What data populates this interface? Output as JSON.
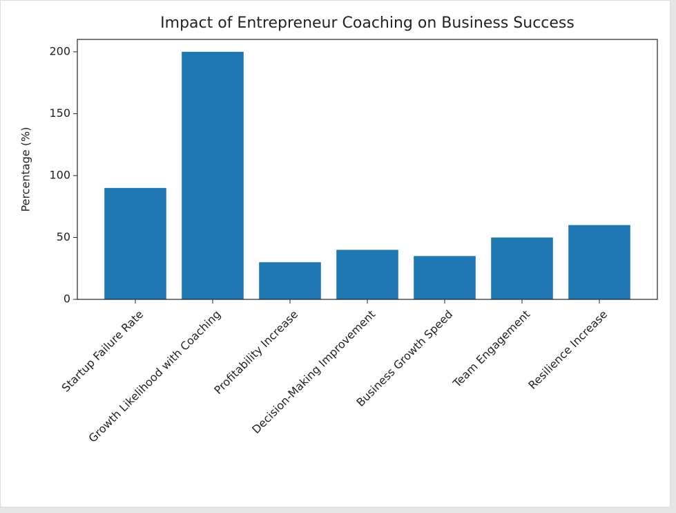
{
  "chart_data": {
    "type": "bar",
    "title": "Impact of Entrepreneur Coaching on Business Success",
    "ylabel": "Percentage (%)",
    "categories": [
      "Startup Failure Rate",
      "Growth Likelihood with Coaching",
      "Profitability Increase",
      "Decision-Making Improvement",
      "Business Growth Speed",
      "Team Engagement",
      "Resilience Increase"
    ],
    "values": [
      90,
      200,
      30,
      40,
      35,
      50,
      60
    ],
    "color": "#1f77b4",
    "ylim": [
      0,
      210
    ],
    "yticks": [
      0,
      50,
      100,
      150,
      200
    ],
    "grid": false
  }
}
